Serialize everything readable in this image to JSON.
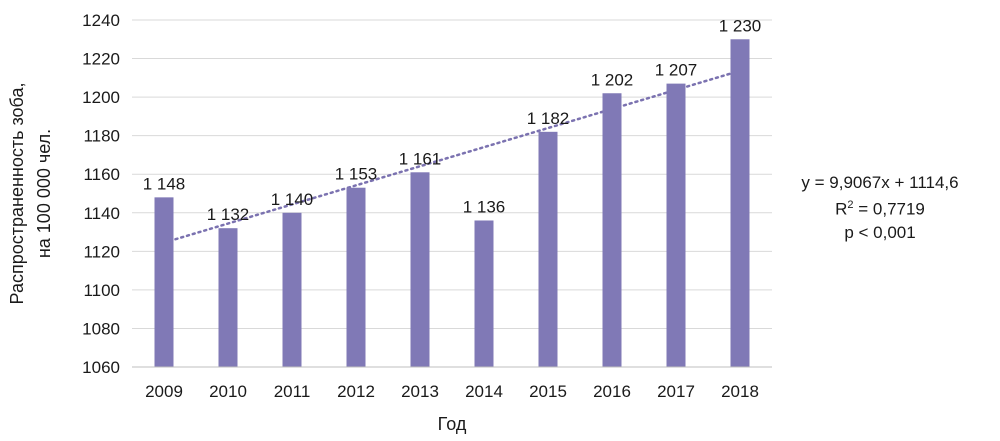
{
  "chart_data": {
    "type": "bar",
    "categories": [
      "2009",
      "2010",
      "2011",
      "2012",
      "2013",
      "2014",
      "2015",
      "2016",
      "2017",
      "2018"
    ],
    "values": [
      1148,
      1132,
      1140,
      1153,
      1161,
      1136,
      1182,
      1202,
      1207,
      1230
    ],
    "data_labels": [
      "1 148",
      "1 132",
      "1 140",
      "1 153",
      "1 161",
      "1 136",
      "1 182",
      "1 202",
      "1 207",
      "1 230"
    ],
    "ylim": [
      1060,
      1240
    ],
    "yticks": [
      1060,
      1080,
      1100,
      1120,
      1140,
      1160,
      1180,
      1200,
      1220,
      1240
    ],
    "xlabel": "Год",
    "ylabel_line1": "Распространенность зоба,",
    "ylabel_line2": "на 100 000 чел.",
    "grid": true,
    "trendline": {
      "type": "linear",
      "slope": 9.9067,
      "intercept": 1114.6,
      "style": "dotted"
    },
    "colors": {
      "bar": "#8079b6",
      "trend": "#7b72b0",
      "grid": "#d9d9d9"
    }
  },
  "annotation": {
    "equation": "y = 9,9067x + 1114,6",
    "r2_prefix": "R",
    "r2_sup": "2",
    "r2_value": " = 0,7719",
    "pvalue": "p < 0,001"
  }
}
